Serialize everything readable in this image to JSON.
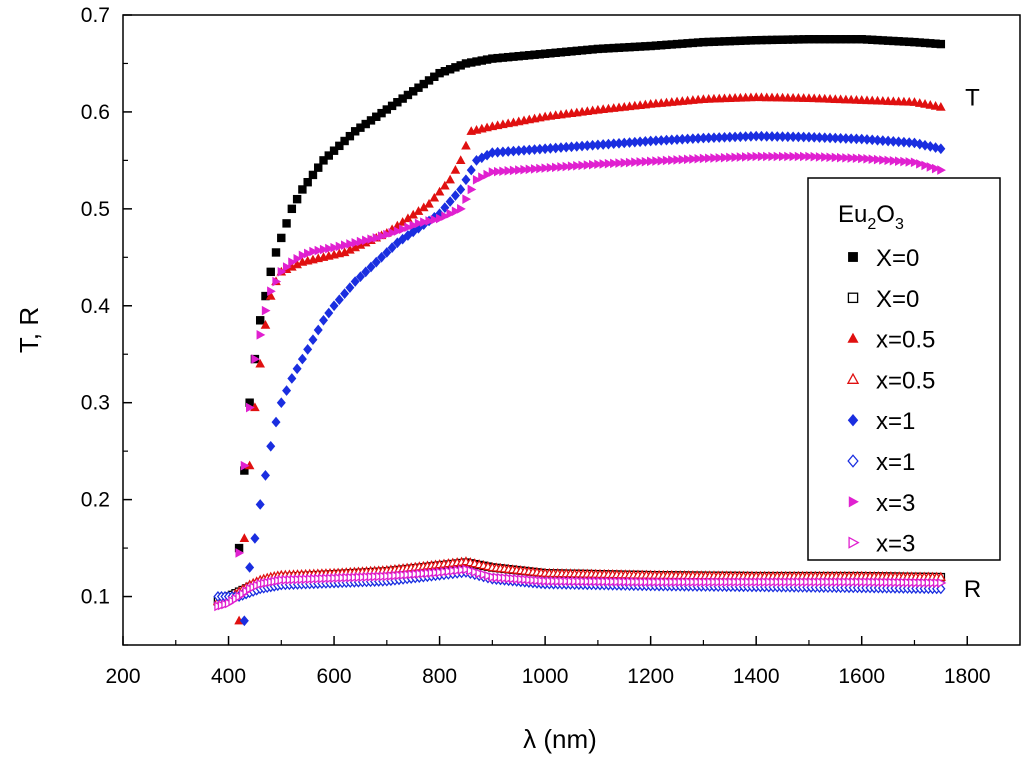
{
  "chart_data": {
    "type": "scatter",
    "title": "",
    "xlabel": "λ (nm)",
    "ylabel": "T, R",
    "xlim": [
      200,
      1900
    ],
    "ylim": [
      0.05,
      0.7
    ],
    "xticks": [
      200,
      400,
      600,
      800,
      1000,
      1200,
      1400,
      1600,
      1800
    ],
    "xtick_labels": [
      "200",
      "400",
      "600",
      "800",
      "1000",
      "1200",
      "1400",
      "1600",
      "1800"
    ],
    "yticks": [
      0.1,
      0.2,
      0.3,
      0.4,
      0.5,
      0.6,
      0.7
    ],
    "ytick_labels": [
      "0.1",
      "0.2",
      "0.3",
      "0.4",
      "0.5",
      "0.6",
      "0.7"
    ],
    "grid": false,
    "legend_position": "right",
    "legend_title_parts": [
      "Eu",
      "2",
      "O",
      "3"
    ],
    "annotations": [
      {
        "text": "T",
        "x": 1810,
        "y": 0.615
      },
      {
        "text": "R",
        "x": 1810,
        "y": 0.108
      }
    ],
    "series": [
      {
        "name": "X=0",
        "marker": "square-filled",
        "color": "#000000",
        "curve": "T",
        "points": [
          [
            420,
            0.15
          ],
          [
            430,
            0.23
          ],
          [
            440,
            0.3
          ],
          [
            450,
            0.345
          ],
          [
            460,
            0.385
          ],
          [
            470,
            0.41
          ],
          [
            480,
            0.435
          ],
          [
            490,
            0.455
          ],
          [
            500,
            0.47
          ],
          [
            520,
            0.5
          ],
          [
            540,
            0.52
          ],
          [
            560,
            0.535
          ],
          [
            580,
            0.55
          ],
          [
            600,
            0.56
          ],
          [
            640,
            0.58
          ],
          [
            680,
            0.595
          ],
          [
            720,
            0.61
          ],
          [
            760,
            0.625
          ],
          [
            800,
            0.64
          ],
          [
            850,
            0.65
          ],
          [
            900,
            0.655
          ],
          [
            1000,
            0.66
          ],
          [
            1100,
            0.665
          ],
          [
            1200,
            0.668
          ],
          [
            1300,
            0.672
          ],
          [
            1400,
            0.674
          ],
          [
            1500,
            0.675
          ],
          [
            1600,
            0.675
          ],
          [
            1700,
            0.672
          ],
          [
            1750,
            0.67
          ]
        ]
      },
      {
        "name": "X=0",
        "marker": "square-open",
        "color": "#000000",
        "curve": "R",
        "points": [
          [
            380,
            0.095
          ],
          [
            400,
            0.1
          ],
          [
            420,
            0.105
          ],
          [
            440,
            0.11
          ],
          [
            460,
            0.113
          ],
          [
            480,
            0.117
          ],
          [
            500,
            0.12
          ],
          [
            600,
            0.123
          ],
          [
            700,
            0.126
          ],
          [
            800,
            0.132
          ],
          [
            850,
            0.135
          ],
          [
            900,
            0.13
          ],
          [
            1000,
            0.124
          ],
          [
            1200,
            0.122
          ],
          [
            1400,
            0.121
          ],
          [
            1600,
            0.121
          ],
          [
            1750,
            0.12
          ]
        ]
      },
      {
        "name": "x=0.5",
        "marker": "triangle-up-filled",
        "color": "#e01010",
        "curve": "T",
        "points": [
          [
            420,
            0.075
          ],
          [
            430,
            0.16
          ],
          [
            440,
            0.235
          ],
          [
            450,
            0.295
          ],
          [
            460,
            0.34
          ],
          [
            470,
            0.38
          ],
          [
            480,
            0.41
          ],
          [
            490,
            0.425
          ],
          [
            500,
            0.435
          ],
          [
            540,
            0.445
          ],
          [
            580,
            0.45
          ],
          [
            620,
            0.455
          ],
          [
            660,
            0.465
          ],
          [
            700,
            0.475
          ],
          [
            740,
            0.49
          ],
          [
            780,
            0.505
          ],
          [
            820,
            0.53
          ],
          [
            840,
            0.55
          ],
          [
            860,
            0.58
          ],
          [
            900,
            0.585
          ],
          [
            1000,
            0.595
          ],
          [
            1100,
            0.602
          ],
          [
            1200,
            0.608
          ],
          [
            1300,
            0.613
          ],
          [
            1400,
            0.615
          ],
          [
            1500,
            0.614
          ],
          [
            1600,
            0.612
          ],
          [
            1700,
            0.61
          ],
          [
            1750,
            0.605
          ]
        ]
      },
      {
        "name": "x=0.5",
        "marker": "triangle-up-open",
        "color": "#e01010",
        "curve": "R",
        "points": [
          [
            380,
            0.095
          ],
          [
            400,
            0.098
          ],
          [
            420,
            0.105
          ],
          [
            440,
            0.112
          ],
          [
            460,
            0.117
          ],
          [
            480,
            0.12
          ],
          [
            500,
            0.122
          ],
          [
            600,
            0.124
          ],
          [
            700,
            0.127
          ],
          [
            800,
            0.133
          ],
          [
            850,
            0.136
          ],
          [
            900,
            0.13
          ],
          [
            1000,
            0.124
          ],
          [
            1200,
            0.122
          ],
          [
            1400,
            0.121
          ],
          [
            1600,
            0.121
          ],
          [
            1750,
            0.12
          ]
        ]
      },
      {
        "name": "x=1",
        "marker": "diamond-filled",
        "color": "#1a2ee0",
        "curve": "T",
        "points": [
          [
            430,
            0.075
          ],
          [
            440,
            0.13
          ],
          [
            450,
            0.16
          ],
          [
            460,
            0.195
          ],
          [
            470,
            0.225
          ],
          [
            480,
            0.255
          ],
          [
            490,
            0.28
          ],
          [
            500,
            0.3
          ],
          [
            520,
            0.325
          ],
          [
            540,
            0.345
          ],
          [
            560,
            0.365
          ],
          [
            580,
            0.385
          ],
          [
            600,
            0.4
          ],
          [
            640,
            0.425
          ],
          [
            680,
            0.445
          ],
          [
            720,
            0.465
          ],
          [
            760,
            0.48
          ],
          [
            800,
            0.495
          ],
          [
            840,
            0.52
          ],
          [
            870,
            0.55
          ],
          [
            900,
            0.558
          ],
          [
            1000,
            0.562
          ],
          [
            1100,
            0.566
          ],
          [
            1200,
            0.57
          ],
          [
            1300,
            0.573
          ],
          [
            1400,
            0.575
          ],
          [
            1500,
            0.574
          ],
          [
            1600,
            0.572
          ],
          [
            1700,
            0.568
          ],
          [
            1750,
            0.562
          ]
        ]
      },
      {
        "name": "x=1",
        "marker": "diamond-open",
        "color": "#1a2ee0",
        "curve": "R",
        "points": [
          [
            380,
            0.1
          ],
          [
            400,
            0.1
          ],
          [
            420,
            0.1
          ],
          [
            440,
            0.104
          ],
          [
            460,
            0.108
          ],
          [
            480,
            0.11
          ],
          [
            500,
            0.112
          ],
          [
            600,
            0.114
          ],
          [
            700,
            0.116
          ],
          [
            800,
            0.122
          ],
          [
            850,
            0.125
          ],
          [
            900,
            0.118
          ],
          [
            1000,
            0.113
          ],
          [
            1200,
            0.111
          ],
          [
            1400,
            0.11
          ],
          [
            1600,
            0.109
          ],
          [
            1750,
            0.108
          ]
        ]
      },
      {
        "name": "x=3",
        "marker": "triangle-right-filled",
        "color": "#e020d0",
        "curve": "T",
        "points": [
          [
            420,
            0.145
          ],
          [
            430,
            0.235
          ],
          [
            440,
            0.295
          ],
          [
            450,
            0.345
          ],
          [
            460,
            0.37
          ],
          [
            470,
            0.395
          ],
          [
            480,
            0.415
          ],
          [
            490,
            0.425
          ],
          [
            500,
            0.435
          ],
          [
            520,
            0.445
          ],
          [
            540,
            0.452
          ],
          [
            560,
            0.456
          ],
          [
            600,
            0.46
          ],
          [
            640,
            0.465
          ],
          [
            680,
            0.47
          ],
          [
            720,
            0.477
          ],
          [
            760,
            0.485
          ],
          [
            800,
            0.49
          ],
          [
            840,
            0.5
          ],
          [
            870,
            0.53
          ],
          [
            900,
            0.538
          ],
          [
            1000,
            0.542
          ],
          [
            1100,
            0.546
          ],
          [
            1200,
            0.549
          ],
          [
            1300,
            0.552
          ],
          [
            1400,
            0.554
          ],
          [
            1500,
            0.554
          ],
          [
            1600,
            0.552
          ],
          [
            1700,
            0.548
          ],
          [
            1750,
            0.54
          ]
        ]
      },
      {
        "name": "x=3",
        "marker": "triangle-right-open",
        "color": "#e020d0",
        "curve": "R",
        "points": [
          [
            380,
            0.09
          ],
          [
            400,
            0.093
          ],
          [
            420,
            0.1
          ],
          [
            440,
            0.108
          ],
          [
            460,
            0.113
          ],
          [
            480,
            0.115
          ],
          [
            500,
            0.117
          ],
          [
            600,
            0.119
          ],
          [
            700,
            0.121
          ],
          [
            800,
            0.125
          ],
          [
            850,
            0.128
          ],
          [
            900,
            0.12
          ],
          [
            1000,
            0.116
          ],
          [
            1200,
            0.115
          ],
          [
            1400,
            0.115
          ],
          [
            1600,
            0.115
          ],
          [
            1750,
            0.114
          ]
        ]
      }
    ]
  }
}
